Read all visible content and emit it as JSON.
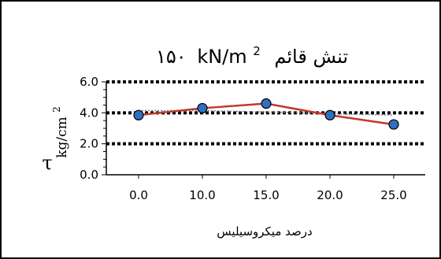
{
  "chart_data": {
    "type": "line",
    "title": "تنش قائم",
    "title_value": "۱۵۰",
    "title_unit": "kN/m",
    "title_unit_sup": "2",
    "ylabel_symbol": "τ",
    "ylabel_unit": "kg/cm",
    "ylabel_unit_sup": "2",
    "xlabel": "درصد میکروسیلیس",
    "categories": [
      "0.0",
      "10.0",
      "15.0",
      "20.0",
      "25.0"
    ],
    "series": [
      {
        "values": [
          3.85,
          4.3,
          4.6,
          3.85,
          3.25
        ],
        "color": "#c0392b",
        "marker_color": "#2f6fc0"
      }
    ],
    "trend": {
      "values": [
        4.15,
        4.15,
        4.05,
        3.95,
        3.85
      ],
      "color": "#7f8c9a"
    },
    "ylim": [
      0.0,
      6.0
    ],
    "yticks": [
      "0.0",
      "2.0",
      "4.0",
      "6.0"
    ],
    "reference_lines": [
      2.0,
      4.0,
      6.0
    ],
    "grid": false
  }
}
